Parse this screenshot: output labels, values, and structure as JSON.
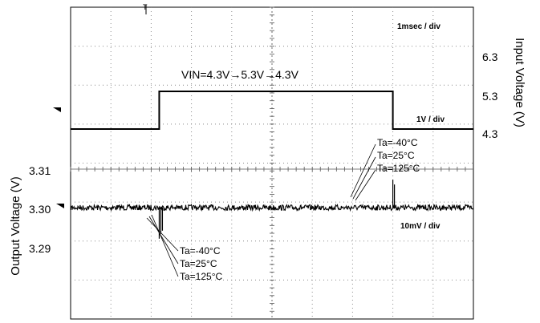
{
  "chart_data": {
    "type": "line",
    "title": "",
    "x_scale_label": "1msec / div",
    "input_scale_label": "1V / div",
    "output_scale_label": "10mV / div",
    "ylabel_left": "Output Voltage (V)",
    "ylabel_right": "Input Voltage (V)",
    "annotation": "VIN=4.3V→5.3V→4.3V",
    "x_divisions": 10,
    "y_divisions": 8,
    "grid": true,
    "left_ticks": [
      "3.31",
      "3.30",
      "3.29"
    ],
    "left_tick_values": [
      3.31,
      3.3,
      3.29
    ],
    "right_ticks": [
      "6.3",
      "5.3",
      "4.3"
    ],
    "right_tick_values": [
      6.3,
      5.3,
      4.3
    ],
    "input_step": {
      "unit": "V",
      "low": 4.3,
      "high": 5.3,
      "rise_time_ms": 2.2,
      "fall_time_ms": 8.0
    },
    "output_series": {
      "unit": "V",
      "nominal": 3.3,
      "undershoot_min": 3.294,
      "overshoot_max": 3.306
    },
    "temperature_labels_top": [
      "Ta=-40°C",
      "Ta=25°C",
      "Ta=125°C"
    ],
    "temperature_labels_bottom": [
      "Ta=-40°C",
      "Ta=25°C",
      "Ta=125°C"
    ],
    "trigger_marker": "T"
  }
}
